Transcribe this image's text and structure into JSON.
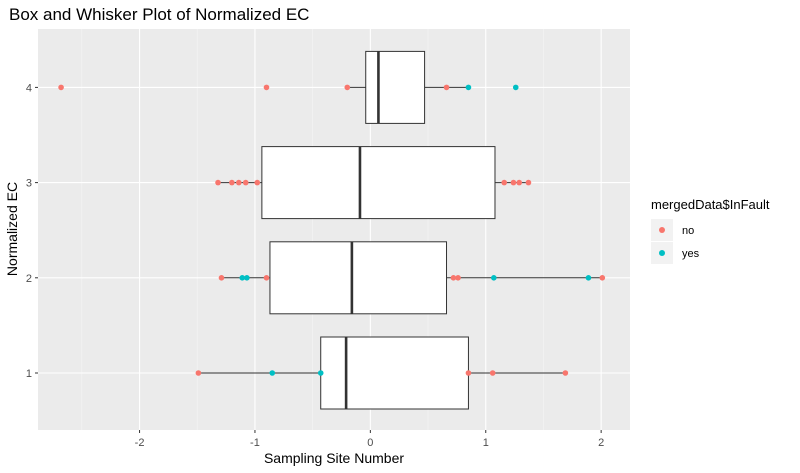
{
  "chart_data": {
    "type": "boxplot",
    "title": "Box and Whisker Plot of Normalized EC",
    "xlabel": "Sampling Site Number",
    "ylabel": "Normalized EC",
    "xlim": [
      -2.88,
      2.25
    ],
    "x_ticks": [
      -2,
      -1,
      0,
      1,
      2
    ],
    "y_ticks": [
      1,
      2,
      3,
      4
    ],
    "grid": true,
    "legend": {
      "title": "mergedData$InFault",
      "position": "right",
      "items": [
        {
          "label": "no",
          "color": "#F8766D"
        },
        {
          "label": "yes",
          "color": "#00BFC4"
        }
      ]
    },
    "boxes": [
      {
        "category": 1,
        "whisker_low": -1.49,
        "q1": -0.43,
        "median": -0.21,
        "q3": 0.85,
        "whisker_high": 1.69
      },
      {
        "category": 2,
        "whisker_low": -1.29,
        "q1": -0.87,
        "median": -0.16,
        "q3": 0.66,
        "whisker_high": 2.01
      },
      {
        "category": 3,
        "whisker_low": -1.32,
        "q1": -0.94,
        "median": -0.09,
        "q3": 1.08,
        "whisker_high": 1.37
      },
      {
        "category": 4,
        "whisker_low": -0.2,
        "q1": -0.04,
        "median": 0.07,
        "q3": 0.47,
        "whisker_high": 0.85
      }
    ],
    "points": [
      {
        "category": 1,
        "x": -1.49,
        "group": "no"
      },
      {
        "category": 1,
        "x": -0.85,
        "group": "yes"
      },
      {
        "category": 1,
        "x": -0.43,
        "group": "yes"
      },
      {
        "category": 1,
        "x": 0.85,
        "group": "no"
      },
      {
        "category": 1,
        "x": 1.06,
        "group": "no"
      },
      {
        "category": 1,
        "x": 1.69,
        "group": "no"
      },
      {
        "category": 2,
        "x": -1.29,
        "group": "no"
      },
      {
        "category": 2,
        "x": -1.11,
        "group": "yes"
      },
      {
        "category": 2,
        "x": -1.07,
        "group": "yes"
      },
      {
        "category": 2,
        "x": -0.9,
        "group": "no"
      },
      {
        "category": 2,
        "x": 0.72,
        "group": "no"
      },
      {
        "category": 2,
        "x": 0.76,
        "group": "no"
      },
      {
        "category": 2,
        "x": 1.07,
        "group": "yes"
      },
      {
        "category": 2,
        "x": 1.89,
        "group": "yes"
      },
      {
        "category": 2,
        "x": 2.01,
        "group": "no"
      },
      {
        "category": 3,
        "x": -1.32,
        "group": "no"
      },
      {
        "category": 3,
        "x": -1.2,
        "group": "no"
      },
      {
        "category": 3,
        "x": -1.14,
        "group": "no"
      },
      {
        "category": 3,
        "x": -1.08,
        "group": "no"
      },
      {
        "category": 3,
        "x": -0.98,
        "group": "no"
      },
      {
        "category": 3,
        "x": 1.16,
        "group": "no"
      },
      {
        "category": 3,
        "x": 1.24,
        "group": "no"
      },
      {
        "category": 3,
        "x": 1.29,
        "group": "no"
      },
      {
        "category": 3,
        "x": 1.37,
        "group": "no"
      },
      {
        "category": 4,
        "x": -2.68,
        "group": "no"
      },
      {
        "category": 4,
        "x": -0.9,
        "group": "no"
      },
      {
        "category": 4,
        "x": -0.2,
        "group": "no"
      },
      {
        "category": 4,
        "x": 0.66,
        "group": "no"
      },
      {
        "category": 4,
        "x": 0.85,
        "group": "yes"
      },
      {
        "category": 4,
        "x": 1.26,
        "group": "yes"
      }
    ]
  }
}
